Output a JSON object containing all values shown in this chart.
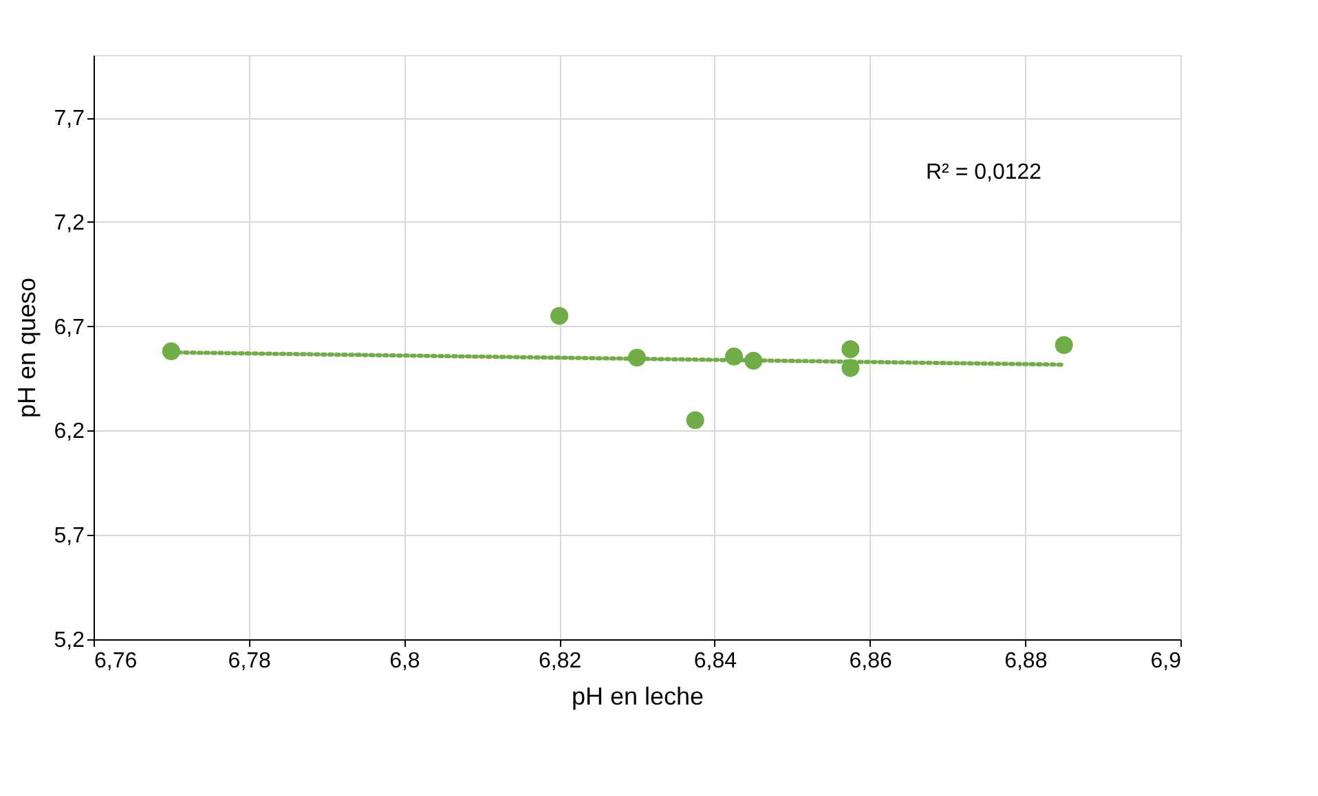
{
  "chart_data": {
    "type": "scatter",
    "xlabel": "pH en leche",
    "ylabel": "pH en queso",
    "series": [
      {
        "color": "#70ad47",
        "marker": "circle",
        "x": [
          6.77,
          6.82,
          6.83,
          6.8375,
          6.8425,
          6.845,
          6.8575,
          6.8575,
          6.885
        ],
        "values": [
          6.58,
          6.75,
          6.55,
          6.25,
          6.555,
          6.535,
          6.59,
          6.5,
          6.61
        ]
      },
      {
        "type": "line",
        "color": "#70ad47",
        "line_style": "dotted",
        "x": [
          6.77,
          6.885
        ],
        "values": [
          6.575,
          6.516
        ]
      }
    ],
    "annotations": [
      "R² = 0,0122"
    ],
    "xlim": [
      6.76,
      6.9
    ],
    "xticks": [
      {
        "value": 6.76,
        "label": "6,76"
      },
      {
        "value": 6.78,
        "label": "6,78"
      },
      {
        "value": 6.8,
        "label": "6,8"
      },
      {
        "value": 6.82,
        "label": "6,82"
      },
      {
        "value": 6.84,
        "label": "6,84"
      },
      {
        "value": 6.86,
        "label": "6,86"
      },
      {
        "value": 6.88,
        "label": "6,88"
      },
      {
        "value": 6.9,
        "label": "6,9"
      }
    ],
    "ylim": [
      5.2,
      8.0
    ],
    "yticks": [
      {
        "value": 5.2,
        "label": "5,2"
      },
      {
        "value": 5.7,
        "label": "5,7"
      },
      {
        "value": 6.2,
        "label": "6,2"
      },
      {
        "value": 6.7,
        "label": "6,7"
      },
      {
        "value": 7.2,
        "label": "7,2"
      },
      {
        "value": 7.7,
        "label": "7,7"
      }
    ],
    "grid": true
  }
}
